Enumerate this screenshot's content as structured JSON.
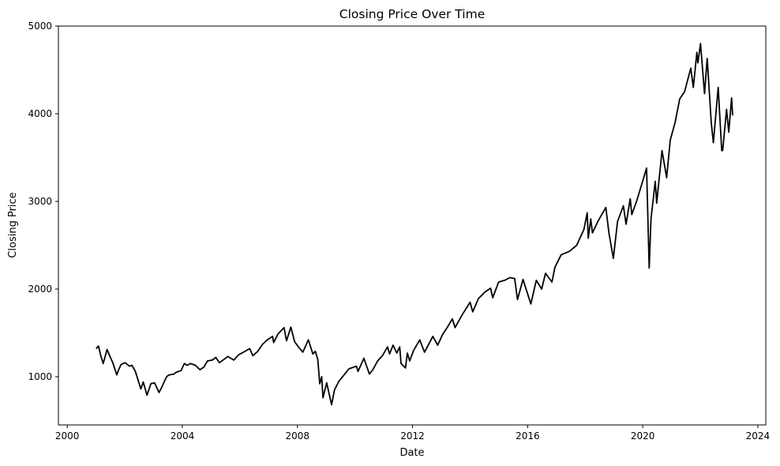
{
  "chart_data": {
    "type": "line",
    "title": "Closing Price Over Time",
    "xlabel": "Date",
    "ylabel": "Closing Price",
    "xlim": [
      "1999-09-11",
      "2024-04-11"
    ],
    "ylim": [
      450,
      5000
    ],
    "x_ticks": [
      "2000",
      "2004",
      "2008",
      "2012",
      "2016",
      "2020",
      "2024"
    ],
    "y_ticks": [
      "1000",
      "2000",
      "3000",
      "4000",
      "5000"
    ],
    "grid": false,
    "legend": "none",
    "series": [
      {
        "color": "#000000",
        "x": [
          "2001-01-02",
          "2001-02-01",
          "2001-03-01",
          "2001-04-01",
          "2001-05-20",
          "2001-07-01",
          "2001-08-01",
          "2001-09-21",
          "2001-10-15",
          "2001-11-15",
          "2002-01-04",
          "2002-03-01",
          "2002-04-01",
          "2002-05-15",
          "2002-07-23",
          "2002-08-22",
          "2002-10-09",
          "2002-11-27",
          "2003-01-14",
          "2003-03-11",
          "2003-04-15",
          "2003-05-15",
          "2003-06-15",
          "2003-07-15",
          "2003-09-15",
          "2003-10-15",
          "2003-12-15",
          "2004-01-26",
          "2004-03-01",
          "2004-04-15",
          "2004-06-15",
          "2004-08-12",
          "2004-10-01",
          "2004-11-15",
          "2005-01-15",
          "2005-03-01",
          "2005-04-15",
          "2005-06-15",
          "2005-08-01",
          "2005-10-15",
          "2005-12-15",
          "2006-02-15",
          "2006-05-05",
          "2006-06-13",
          "2006-08-15",
          "2006-10-15",
          "2006-12-15",
          "2007-02-20",
          "2007-03-05",
          "2007-05-01",
          "2007-07-15",
          "2007-08-15",
          "2007-10-09",
          "2007-11-26",
          "2008-01-22",
          "2008-03-10",
          "2008-05-19",
          "2008-07-15",
          "2008-08-15",
          "2008-09-15",
          "2008-10-10",
          "2008-11-04",
          "2008-11-20",
          "2009-01-06",
          "2009-03-09",
          "2009-04-15",
          "2009-06-12",
          "2009-08-15",
          "2009-10-15",
          "2010-01-19",
          "2010-02-08",
          "2010-04-23",
          "2010-07-02",
          "2010-08-15",
          "2010-10-15",
          "2010-12-15",
          "2011-02-18",
          "2011-03-16",
          "2011-04-29",
          "2011-06-15",
          "2011-07-22",
          "2011-08-08",
          "2011-10-03",
          "2011-10-27",
          "2011-11-25",
          "2012-01-15",
          "2012-04-02",
          "2012-06-01",
          "2012-09-14",
          "2012-11-15",
          "2013-01-15",
          "2013-03-15",
          "2013-05-21",
          "2013-06-24",
          "2013-09-18",
          "2013-12-31",
          "2014-02-03",
          "2014-04-15",
          "2014-06-30",
          "2014-09-18",
          "2014-10-15",
          "2014-12-29",
          "2015-03-15",
          "2015-05-21",
          "2015-07-20",
          "2015-08-25",
          "2015-11-03",
          "2016-02-11",
          "2016-04-20",
          "2016-06-27",
          "2016-08-15",
          "2016-11-04",
          "2016-12-13",
          "2017-03-01",
          "2017-06-15",
          "2017-09-15",
          "2017-12-15",
          "2018-01-26",
          "2018-02-08",
          "2018-03-12",
          "2018-04-02",
          "2018-06-15",
          "2018-09-20",
          "2018-10-29",
          "2018-12-24",
          "2019-02-15",
          "2019-04-30",
          "2019-06-03",
          "2019-07-26",
          "2019-08-15",
          "2019-10-15",
          "2019-12-31",
          "2020-02-19",
          "2020-03-23",
          "2020-04-15",
          "2020-06-08",
          "2020-06-26",
          "2020-09-02",
          "2020-10-30",
          "2020-12-15",
          "2021-02-15",
          "2021-04-15",
          "2021-06-15",
          "2021-09-02",
          "2021-10-04",
          "2021-11-18",
          "2021-12-01",
          "2022-01-03",
          "2022-02-23",
          "2022-03-29",
          "2022-05-20",
          "2022-06-16",
          "2022-08-16",
          "2022-09-30",
          "2022-10-12",
          "2022-11-30",
          "2022-12-28",
          "2023-02-02",
          "2023-02-15"
        ],
        "y": [
          1320,
          1350,
          1240,
          1150,
          1310,
          1220,
          1160,
          1020,
          1080,
          1140,
          1160,
          1120,
          1130,
          1060,
          860,
          940,
          790,
          920,
          930,
          820,
          880,
          940,
          1000,
          1020,
          1030,
          1050,
          1070,
          1150,
          1130,
          1150,
          1130,
          1080,
          1110,
          1180,
          1190,
          1220,
          1160,
          1200,
          1230,
          1190,
          1250,
          1280,
          1320,
          1240,
          1290,
          1370,
          1420,
          1460,
          1390,
          1490,
          1560,
          1410,
          1565,
          1400,
          1330,
          1280,
          1420,
          1260,
          1290,
          1200,
          920,
          1000,
          760,
          930,
          680,
          850,
          950,
          1020,
          1090,
          1120,
          1060,
          1210,
          1030,
          1080,
          1180,
          1240,
          1340,
          1260,
          1360,
          1270,
          1340,
          1150,
          1100,
          1270,
          1180,
          1300,
          1420,
          1280,
          1460,
          1360,
          1480,
          1560,
          1660,
          1560,
          1700,
          1850,
          1740,
          1890,
          1960,
          2010,
          1900,
          2080,
          2100,
          2130,
          2120,
          1880,
          2110,
          1830,
          2100,
          2000,
          2180,
          2080,
          2250,
          2390,
          2430,
          2500,
          2680,
          2870,
          2580,
          2800,
          2640,
          2780,
          2930,
          2640,
          2350,
          2770,
          2950,
          2740,
          3030,
          2850,
          3000,
          3230,
          3380,
          2240,
          2800,
          3230,
          2980,
          3580,
          3270,
          3700,
          3900,
          4170,
          4250,
          4520,
          4300,
          4700,
          4580,
          4800,
          4230,
          4630,
          3900,
          3670,
          4300,
          3580,
          3580,
          4050,
          3790,
          4180,
          3980
        ]
      }
    ]
  }
}
